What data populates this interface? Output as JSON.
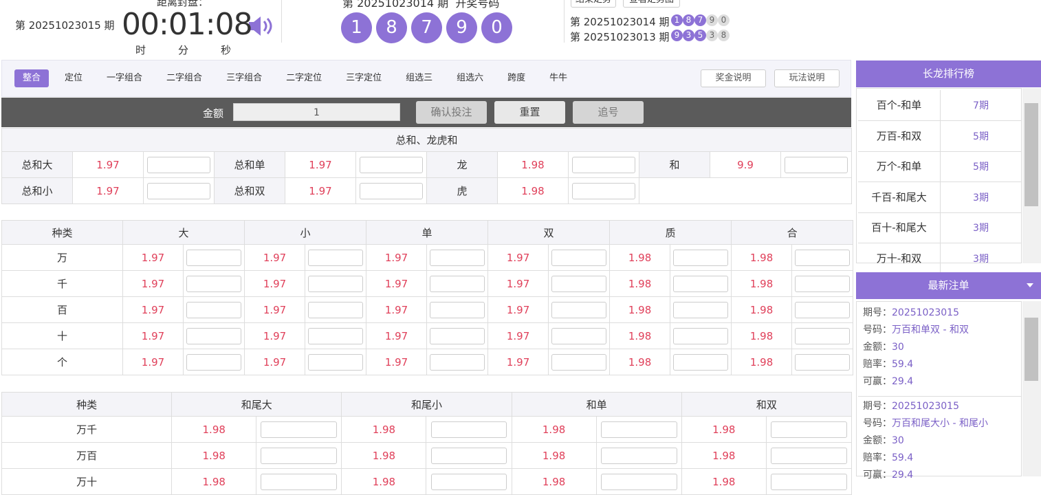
{
  "header": {
    "current_period": "第 20251023015 期",
    "countdown_label": "距离封盘：",
    "countdown": "00:01:08",
    "time_units": [
      "时",
      "分",
      "秒"
    ],
    "draw_title": "第 20251023014 期  开奖号码",
    "draw_numbers": [
      "1",
      "8",
      "7",
      "9",
      "0"
    ],
    "buttons": [
      "结果走势",
      "查看走势图"
    ],
    "history": [
      {
        "period": "第 20251023014 期",
        "balls": [
          "1",
          "8",
          "7",
          "9",
          "0"
        ]
      },
      {
        "period": "第 20251023013 期",
        "balls": [
          "9",
          "3",
          "5",
          "3",
          "8"
        ]
      }
    ]
  },
  "tabs": {
    "items": [
      "整合",
      "定位",
      "一字组合",
      "二字组合",
      "三字组合",
      "二字定位",
      "三字定位",
      "组选三",
      "组选六",
      "跨度",
      "牛牛"
    ],
    "active": 0,
    "buttons": [
      "奖金说明",
      "玩法说明"
    ]
  },
  "bet_bar": {
    "amount_label": "金额",
    "amount_value": "1",
    "buttons": [
      "确认投注",
      "重置",
      "追号"
    ]
  },
  "section1": {
    "title": "总和、龙虎和",
    "rows": [
      [
        {
          "name": "总和大",
          "odds": 1.97
        },
        {
          "name": "总和单",
          "odds": 1.97
        },
        {
          "name": "龙",
          "odds": 1.98
        },
        {
          "name": "和",
          "odds": 9.9
        }
      ],
      [
        {
          "name": "总和小",
          "odds": 1.97
        },
        {
          "name": "总和双",
          "odds": 1.97
        },
        {
          "name": "虎",
          "odds": 1.98
        }
      ]
    ]
  },
  "section2": {
    "header": [
      "种类",
      "大",
      "小",
      "单",
      "双",
      "质",
      "合"
    ],
    "rows": [
      {
        "name": "万",
        "odds": [
          1.97,
          1.97,
          1.97,
          1.97,
          1.98,
          1.98
        ]
      },
      {
        "name": "千",
        "odds": [
          1.97,
          1.97,
          1.97,
          1.97,
          1.98,
          1.98
        ]
      },
      {
        "name": "百",
        "odds": [
          1.97,
          1.97,
          1.97,
          1.97,
          1.98,
          1.98
        ]
      },
      {
        "name": "十",
        "odds": [
          1.97,
          1.97,
          1.97,
          1.97,
          1.98,
          1.98
        ]
      },
      {
        "name": "个",
        "odds": [
          1.97,
          1.97,
          1.97,
          1.97,
          1.98,
          1.98
        ]
      }
    ]
  },
  "section3": {
    "header": [
      "种类",
      "和尾大",
      "和尾小",
      "和单",
      "和双"
    ],
    "rows": [
      {
        "name": "万千",
        "odds": [
          1.98,
          1.98,
          1.98,
          1.98
        ]
      },
      {
        "name": "万百",
        "odds": [
          1.98,
          1.98,
          1.98,
          1.98
        ]
      },
      {
        "name": "万十",
        "odds": [
          1.98,
          1.98,
          1.98,
          1.98
        ]
      }
    ]
  },
  "long_dragon": {
    "title": "长龙排行榜",
    "items": [
      {
        "name": "百个-和单",
        "periods": "7期"
      },
      {
        "name": "万百-和双",
        "periods": "5期"
      },
      {
        "name": "万个-和单",
        "periods": "5期"
      },
      {
        "name": "千百-和尾大",
        "periods": "3期"
      },
      {
        "name": "百十-和尾大",
        "periods": "3期"
      },
      {
        "name": "万十-和双",
        "periods": "3期"
      }
    ]
  },
  "latest_bets": {
    "title": "最新注单",
    "field_labels": [
      "期号：",
      "号码：",
      "金额：",
      "赔率：",
      "可赢："
    ],
    "orders": [
      {
        "period": "20251023015",
        "code": "万百和单双 - 和双",
        "amount": 30,
        "odds": 59.4,
        "win": 29.4
      },
      {
        "period": "20251023015",
        "code": "万百和尾大小 - 和尾小",
        "amount": 30,
        "odds": 59.4,
        "win": 29.4
      }
    ]
  }
}
